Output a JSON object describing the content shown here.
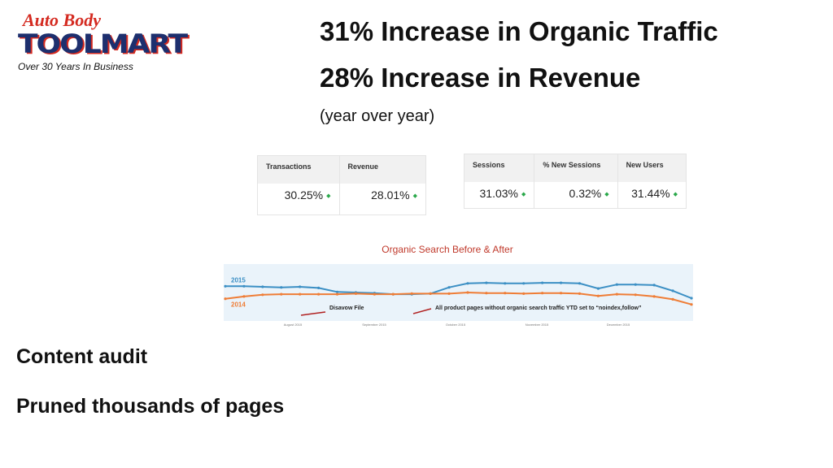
{
  "logo": {
    "line1": "Auto Body",
    "line2": "TOOLMART",
    "tagline": "Over 30 Years In Business"
  },
  "headlines": [
    "31% Increase in Organic Traffic",
    "28% Increase in Revenue"
  ],
  "note": "(year over year)",
  "table1": {
    "headers": [
      "Transactions",
      "Revenue"
    ],
    "values": [
      "30.25%",
      "28.01%"
    ]
  },
  "table2": {
    "headers": [
      "Sessions",
      "% New Sessions",
      "New Users"
    ],
    "values": [
      "31.03%",
      "0.32%",
      "31.44%"
    ]
  },
  "chart": {
    "type": "line",
    "title": "Organic Search Before & After",
    "ylim": [
      0,
      100
    ],
    "series": [
      {
        "name": "2015",
        "color": "#3b8fc4",
        "values": [
          61,
          61,
          60,
          59,
          60,
          58,
          51,
          50,
          49,
          47,
          47,
          48,
          59,
          66,
          67,
          66,
          66,
          67,
          67,
          66,
          57,
          64,
          64,
          63,
          53,
          40
        ]
      },
      {
        "name": "2014",
        "color": "#ef7d36",
        "values": [
          39,
          43,
          46,
          47,
          47,
          47,
          47,
          48,
          47,
          47,
          48,
          48,
          48,
          50,
          49,
          49,
          48,
          49,
          49,
          48,
          44,
          47,
          46,
          43,
          38,
          29
        ]
      }
    ],
    "x_labels": [
      "August 2015",
      "September 2015",
      "October 2015",
      "November 2015",
      "December 2015"
    ],
    "annotations": [
      "Disavow File",
      "All product pages without organic search traffic YTD set to “noindex,follow”"
    ]
  },
  "bullets": [
    "Content audit",
    "Pruned thousands of pages"
  ]
}
